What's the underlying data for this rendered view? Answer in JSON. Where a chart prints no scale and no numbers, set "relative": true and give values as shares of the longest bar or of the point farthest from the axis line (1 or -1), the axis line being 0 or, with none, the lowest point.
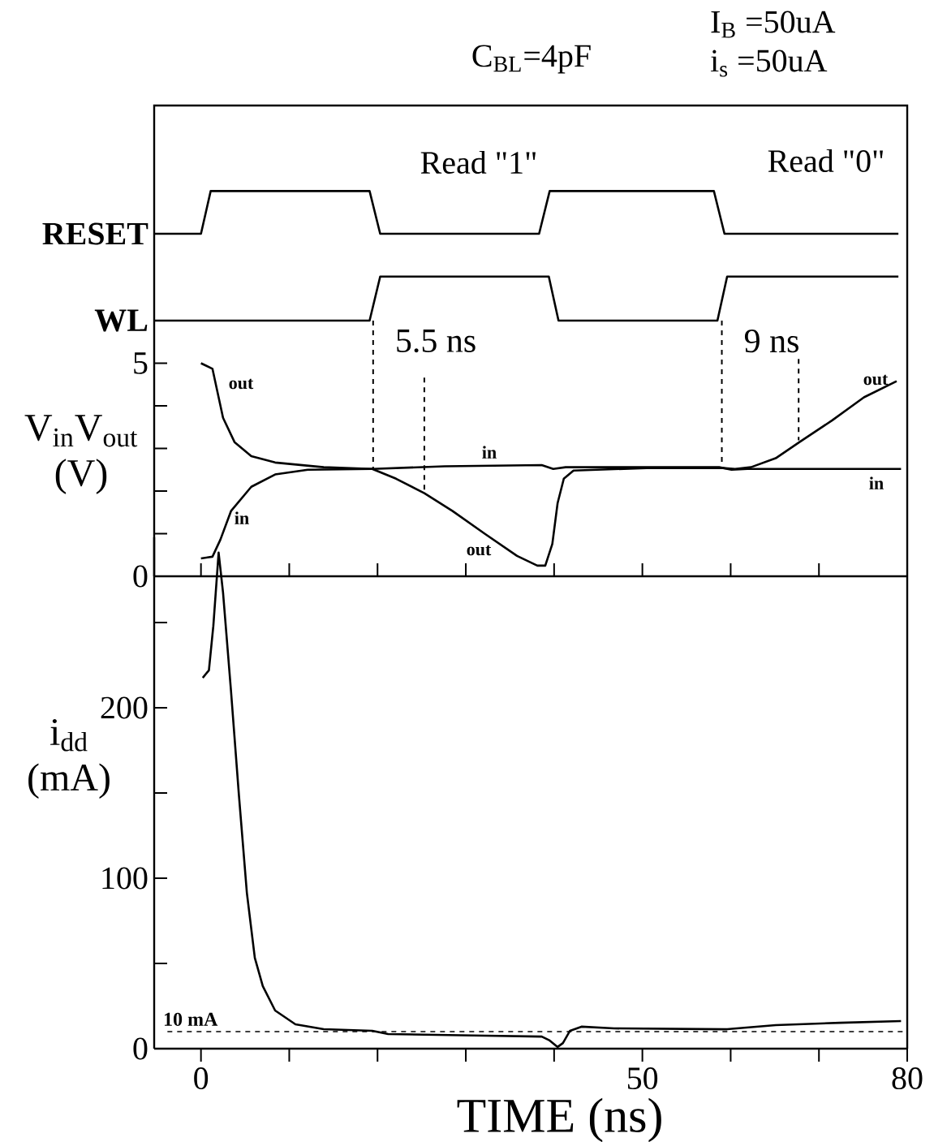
{
  "chart_data": [
    {
      "type": "line",
      "relative": true,
      "title": "C$_{BL}$=4pF",
      "xlim": [
        -5.3,
        80
      ],
      "annotations": [
        "I$_{B}$ =50uA",
        "i$_{s}$ =50uA",
        "Read \"1\"",
        "Read \"0\""
      ],
      "series": [
        {
          "name": "RESET",
          "color": "#000000",
          "x": [
            -5.3,
            0,
            1.1,
            19.1,
            20.3,
            38.3,
            39.5,
            58.1,
            59.3,
            79
          ],
          "values": [
            0.67,
            0.67,
            1,
            1,
            0.67,
            0.67,
            1,
            1,
            0.67,
            0.67
          ]
        },
        {
          "name": "WL",
          "color": "#000000",
          "x": [
            -5.3,
            19.1,
            20.3,
            39.4,
            40.5,
            58.5,
            59.6,
            79
          ],
          "values": [
            0,
            0,
            0.34,
            0.34,
            0,
            0,
            0.34,
            0.34
          ]
        }
      ]
    },
    {
      "type": "line",
      "ylabel": "V$_{in}$V$_{out}$ (V)",
      "xlim": [
        -5.3,
        80
      ],
      "ylim": [
        0,
        6
      ],
      "tick_labels": "y",
      "xticks": [
        {
          "value": 0,
          "label": null
        },
        {
          "value": 10,
          "label": null
        },
        {
          "value": 20,
          "label": null
        },
        {
          "value": 30,
          "label": null
        },
        {
          "value": 40,
          "label": null
        },
        {
          "value": 50,
          "label": null
        },
        {
          "value": 60,
          "label": null
        },
        {
          "value": 70,
          "label": null
        },
        {
          "value": 80,
          "label": null
        }
      ],
      "yticks": [
        0,
        {
          "value": 1,
          "label": null
        },
        {
          "value": 2,
          "label": null
        },
        {
          "value": 3,
          "label": null
        },
        {
          "value": 4,
          "label": null
        },
        5
      ],
      "annotations": [
        "out",
        "in",
        "in",
        "out",
        "out",
        "in"
      ],
      "series": [
        {
          "color": "#000000",
          "x": [
            0,
            1.3,
            1.8,
            2.5,
            3.8,
            5.7,
            8.4,
            13.9,
            19.4,
            22.1,
            25.3,
            28.5,
            32.2,
            35.8,
            38.1,
            39.0,
            39.8,
            40.4,
            41.1,
            42.2,
            50.5,
            59.1,
            60.5,
            62.3,
            65.1,
            67.8,
            71.5,
            75.1,
            78.8
          ],
          "values": [
            5.0,
            4.87,
            4.39,
            3.72,
            3.15,
            2.82,
            2.67,
            2.56,
            2.52,
            2.29,
            1.95,
            1.53,
            0.99,
            0.48,
            0.25,
            0.25,
            0.76,
            1.72,
            2.29,
            2.48,
            2.54,
            2.54,
            2.52,
            2.56,
            2.77,
            3.15,
            3.66,
            4.2,
            4.58
          ]
        },
        {
          "color": "#000000",
          "x": [
            0,
            1.3,
            2.2,
            3.4,
            5.7,
            8.4,
            12.1,
            19.4,
            27.6,
            38.6,
            39.9,
            41.3,
            50.5,
            58.7,
            60.1,
            61.9,
            68.7,
            79.3
          ],
          "values": [
            0.42,
            0.46,
            0.86,
            1.53,
            2.1,
            2.39,
            2.5,
            2.52,
            2.58,
            2.61,
            2.52,
            2.56,
            2.56,
            2.56,
            2.5,
            2.52,
            2.52,
            2.52
          ]
        },
        {
          "name": "5.5 ns",
          "color": "#000000",
          "line_style": "dashed",
          "x": [
            19.5,
            19.5,
            null,
            25.3,
            25.3
          ],
          "values": [
            6.0,
            2.52,
            null,
            4.66,
            2.0
          ]
        },
        {
          "name": "9 ns",
          "color": "#000000",
          "line_style": "dashed",
          "x": [
            59.0,
            59.0,
            null,
            67.7,
            67.7
          ],
          "values": [
            6.0,
            2.54,
            null,
            5.1,
            3.19
          ]
        }
      ]
    },
    {
      "type": "line",
      "xlabel": "TIME (ns)",
      "ylabel": "i$_{dd}$ (mA)",
      "xlim": [
        -5.3,
        80
      ],
      "ylim": [
        0,
        300
      ],
      "xticks": [
        0,
        {
          "value": 10,
          "label": null
        },
        {
          "value": 20,
          "label": null
        },
        {
          "value": 30,
          "label": null
        },
        {
          "value": 40,
          "label": null
        },
        50,
        {
          "value": 60,
          "label": null
        },
        {
          "value": 70,
          "label": null
        },
        80
      ],
      "yticks": [
        0,
        {
          "value": 50,
          "label": null
        },
        100,
        {
          "value": 150,
          "label": null
        },
        200,
        {
          "value": 250,
          "label": null
        }
      ],
      "ref_lines": [
        {
          "axis": "y",
          "value": 10,
          "label": "10 mA",
          "line_style": "dashed"
        }
      ],
      "series": [
        {
          "color": "#000000",
          "x": [
            0.2,
            0.9,
            1.4,
            2.0,
            2.5,
            3.4,
            4.3,
            5.2,
            6.1,
            7.0,
            8.4,
            10.7,
            13.9,
            19.4,
            21.2,
            32.2,
            38.6,
            39.5,
            40.4,
            41.0,
            41.8,
            43.1,
            46.8,
            59.6,
            65.1,
            72.4,
            79.3
          ],
          "values": [
            217.6,
            222,
            248,
            291,
            267.6,
            210,
            148.6,
            91.4,
            53.3,
            36.7,
            22.4,
            14.3,
            11.4,
            10.5,
            8.6,
            7.6,
            7.1,
            4.8,
            1,
            3.3,
            10.5,
            12.9,
            11.9,
            11.4,
            13.8,
            15.2,
            16.2
          ]
        }
      ]
    }
  ]
}
